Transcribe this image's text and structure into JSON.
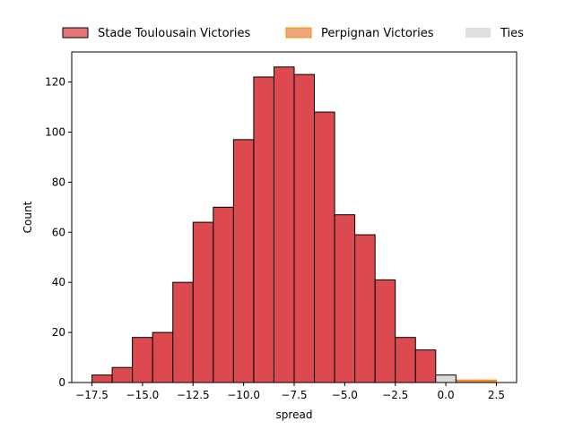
{
  "chart_data": {
    "type": "bar",
    "xlabel": "spread",
    "ylabel": "Count",
    "xlim": [
      -18.5,
      3.5
    ],
    "ylim": [
      0,
      132
    ],
    "xticks": [
      -17.5,
      -15.0,
      -12.5,
      -10.0,
      -7.5,
      -5.0,
      -2.5,
      0.0,
      2.5
    ],
    "xtick_labels": [
      "−17.5",
      "−15.0",
      "−12.5",
      "−10.0",
      "−7.5",
      "−5.0",
      "−2.5",
      "0.0",
      "2.5"
    ],
    "yticks": [
      0,
      20,
      40,
      60,
      80,
      100,
      120
    ],
    "grid": false,
    "legend_placement": "top-center, outside plot",
    "series": [
      {
        "name": "Stade Toulousain Victories",
        "color": "#dc494e",
        "edgecolor": "#000000",
        "bins": [
          {
            "x0": -17.5,
            "x1": -16.5,
            "value": 3
          },
          {
            "x0": -16.5,
            "x1": -15.5,
            "value": 6
          },
          {
            "x0": -15.5,
            "x1": -14.5,
            "value": 18
          },
          {
            "x0": -14.5,
            "x1": -13.5,
            "value": 20
          },
          {
            "x0": -13.5,
            "x1": -12.5,
            "value": 40
          },
          {
            "x0": -12.5,
            "x1": -11.5,
            "value": 64
          },
          {
            "x0": -11.5,
            "x1": -10.5,
            "value": 70
          },
          {
            "x0": -10.5,
            "x1": -9.5,
            "value": 97
          },
          {
            "x0": -9.5,
            "x1": -8.5,
            "value": 122
          },
          {
            "x0": -8.5,
            "x1": -7.5,
            "value": 126
          },
          {
            "x0": -7.5,
            "x1": -6.5,
            "value": 123
          },
          {
            "x0": -6.5,
            "x1": -5.5,
            "value": 108
          },
          {
            "x0": -5.5,
            "x1": -4.5,
            "value": 67
          },
          {
            "x0": -4.5,
            "x1": -3.5,
            "value": 59
          },
          {
            "x0": -3.5,
            "x1": -2.5,
            "value": 41
          },
          {
            "x0": -2.5,
            "x1": -1.5,
            "value": 18
          },
          {
            "x0": -1.5,
            "x1": -0.5,
            "value": 13
          }
        ]
      },
      {
        "name": "Perpignan Victories",
        "color": "#e8894d",
        "edgecolor": "#ff8c00",
        "bins": [
          {
            "x0": 0.5,
            "x1": 1.5,
            "value": 1
          },
          {
            "x0": 1.5,
            "x1": 2.5,
            "value": 1
          }
        ]
      },
      {
        "name": "Ties",
        "color": "#d9d9d9",
        "edgecolor": "#000000",
        "bins": [
          {
            "x0": -0.5,
            "x1": 0.5,
            "value": 3
          }
        ]
      }
    ]
  }
}
